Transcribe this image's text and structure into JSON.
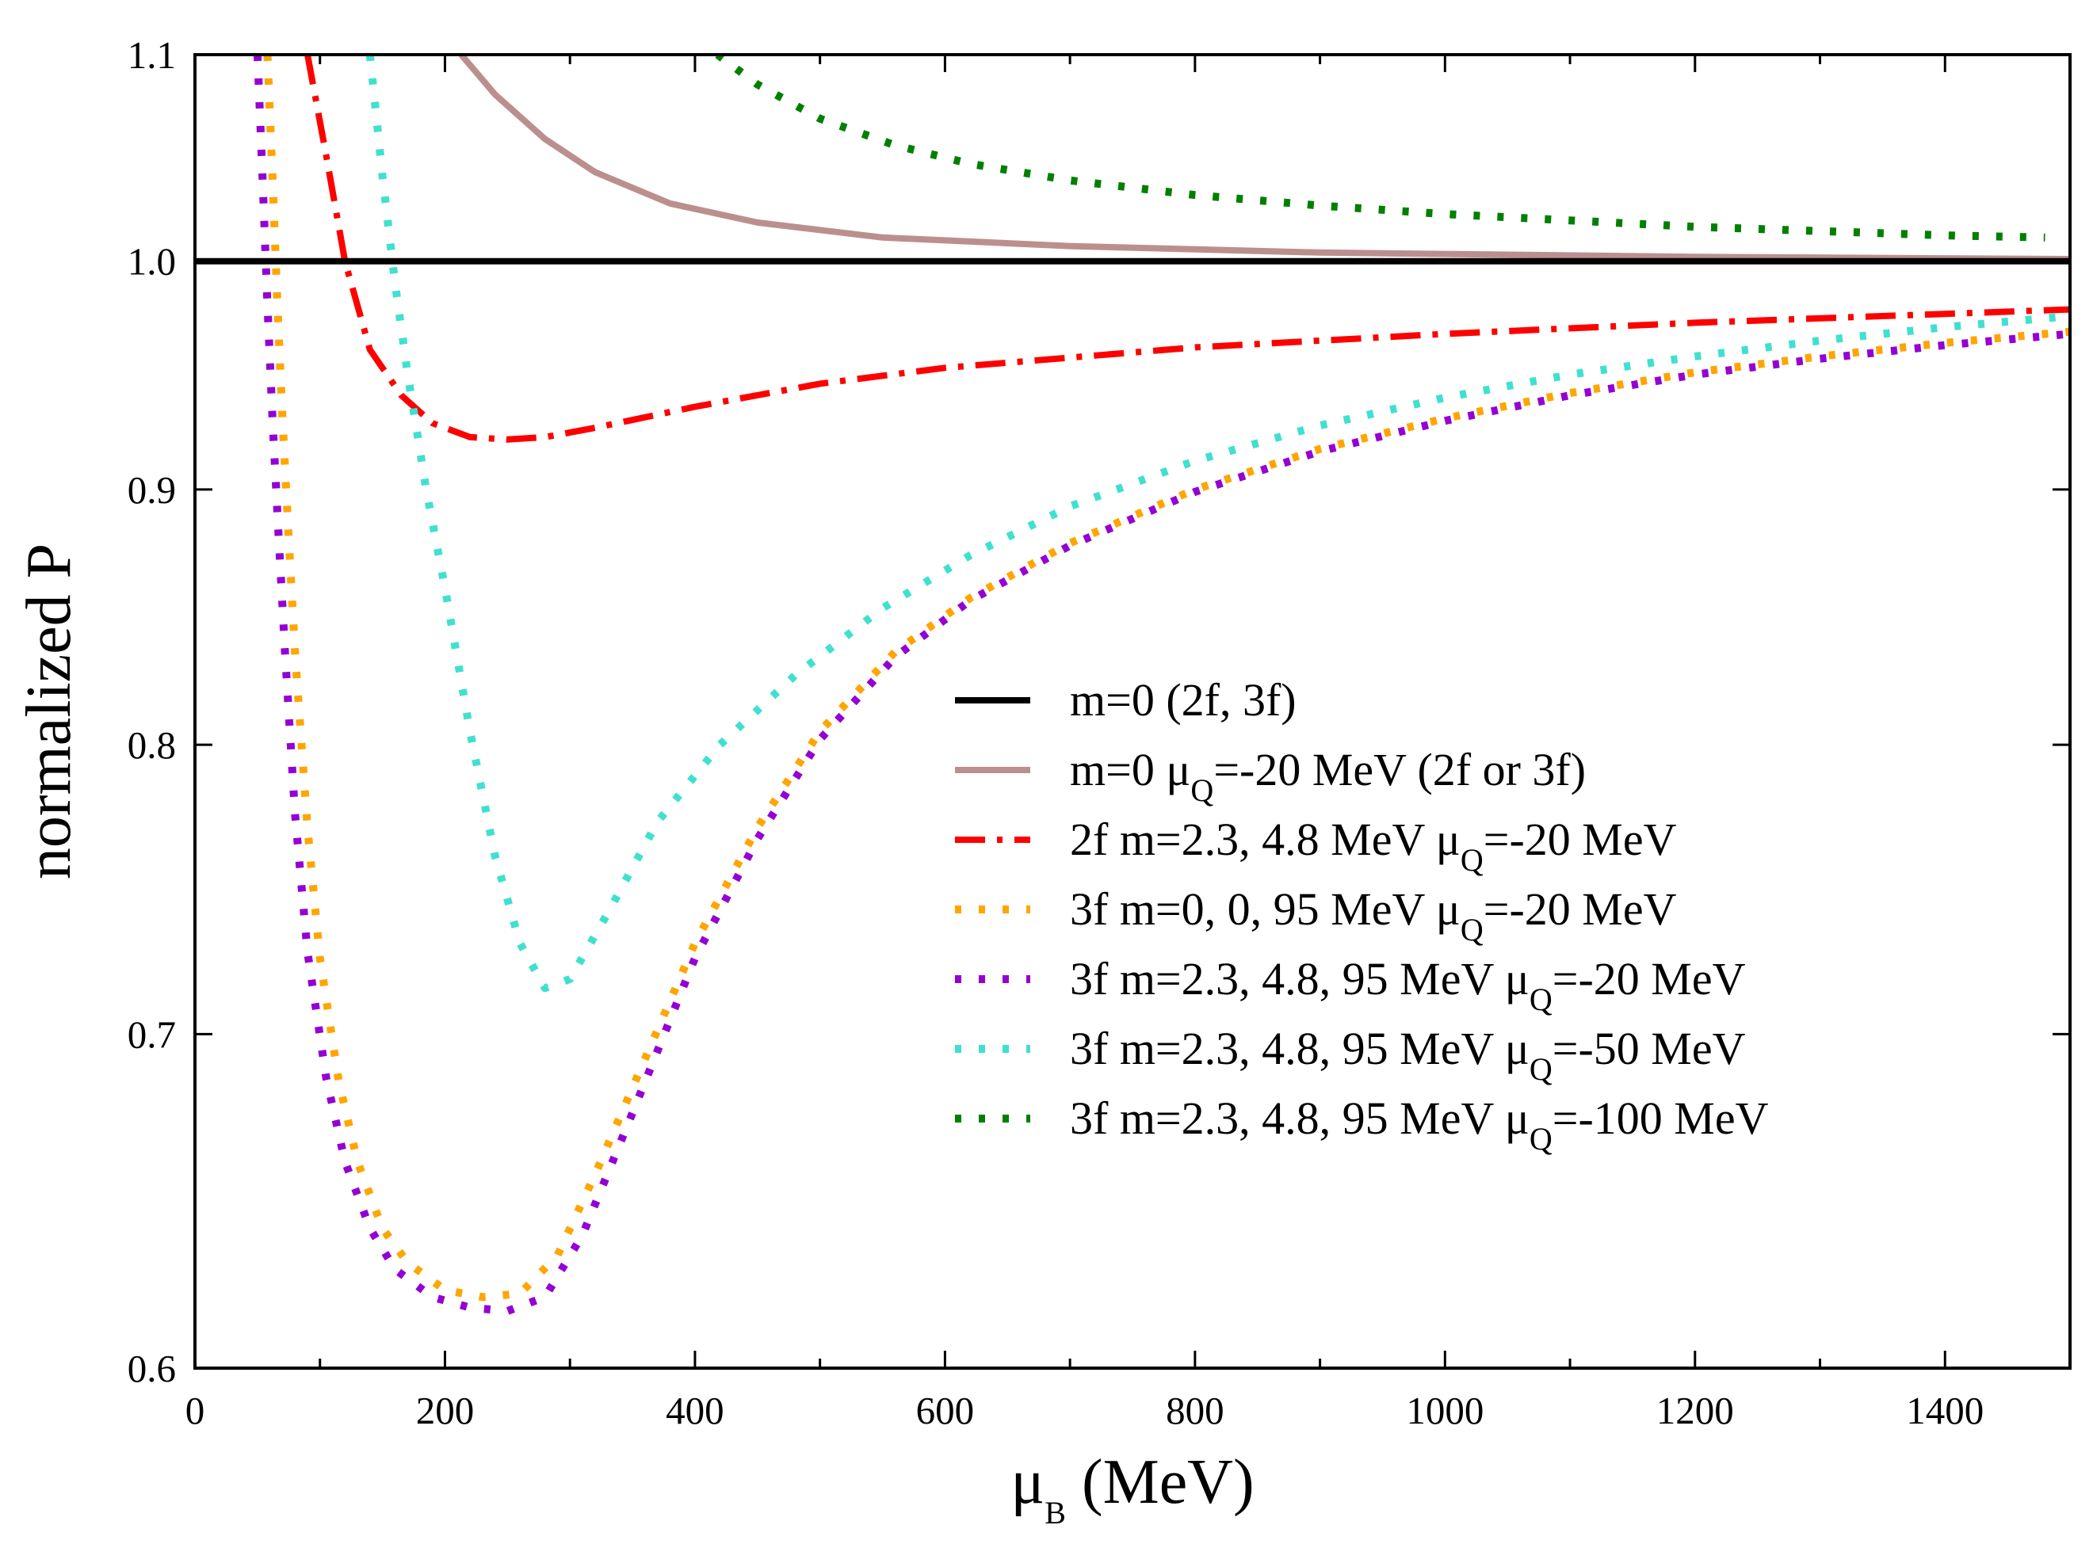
{
  "chart_data": {
    "type": "line",
    "title": "",
    "xlabel": {
      "symbol": "μ",
      "sub": "B",
      "rest": " (MeV)"
    },
    "ylabel": "normalized P",
    "xlim": [
      0,
      1500
    ],
    "ylim": [
      0.6,
      1.1
    ],
    "y_scale": "logarithmic",
    "grid": false,
    "legend_position": "center-right",
    "x_ticks": [
      0,
      200,
      400,
      600,
      800,
      1000,
      1200,
      1400
    ],
    "x_tick_labels": [
      "0",
      "200",
      "400",
      "600",
      "800",
      "1000",
      "1200",
      "1400"
    ],
    "y_ticks": [
      0.6,
      0.7,
      0.8,
      0.9,
      1.0,
      1.1
    ],
    "y_tick_labels": [
      "0.6",
      "0.7",
      "0.8",
      "0.9",
      "1.0",
      "1.1"
    ],
    "series": [
      {
        "name": "m=0 (2f, 3f)",
        "legend": [
          {
            "t": "m=0 (2f, 3f)"
          }
        ],
        "color": "#000000",
        "style": "solid",
        "x": [
          0,
          1500
        ],
        "y": [
          1.0,
          1.0
        ]
      },
      {
        "name": "m=0 μQ=-20 MeV (2f or 3f)",
        "legend": [
          {
            "t": "m=0 μ"
          },
          {
            "sub": "Q"
          },
          {
            "t": "=-20 MeV (2f or 3f)"
          }
        ],
        "color": "#BC8F8F",
        "style": "solid",
        "x": [
          213,
          240,
          280,
          320,
          380,
          450,
          550,
          700,
          900,
          1200,
          1500
        ],
        "y": [
          1.1,
          1.08,
          1.058,
          1.042,
          1.027,
          1.018,
          1.011,
          1.007,
          1.004,
          1.002,
          1.001
        ]
      },
      {
        "name": "2f m=2.3, 4.8 MeV μQ=-20 MeV",
        "legend": [
          {
            "t": "2f m=2.3, 4.8 MeV μ"
          },
          {
            "sub": "Q"
          },
          {
            "t": "=-20 MeV"
          }
        ],
        "color": "#FF0000",
        "style": "dashdot",
        "x": [
          90,
          105,
          120,
          140,
          165,
          190,
          220,
          250,
          280,
          320,
          400,
          500,
          600,
          800,
          1000,
          1200,
          1400,
          1500
        ],
        "y": [
          1.1,
          1.05,
          1.0,
          0.96,
          0.94,
          0.928,
          0.922,
          0.921,
          0.922,
          0.926,
          0.935,
          0.945,
          0.952,
          0.961,
          0.967,
          0.972,
          0.976,
          0.978
        ]
      },
      {
        "name": "3f m=0, 0, 95 MeV μQ=-20 MeV",
        "legend": [
          {
            "t": "3f m=0, 0, 95 MeV μ"
          },
          {
            "sub": "Q"
          },
          {
            "t": "=-20 MeV"
          }
        ],
        "color": "#FFA500",
        "style": "dotted",
        "x": [
          58,
          62,
          66,
          70,
          75,
          80,
          90,
          100,
          115,
          130,
          150,
          170,
          200,
          230,
          260,
          290,
          320,
          360,
          400,
          450,
          500,
          560,
          620,
          700,
          800,
          900,
          1000,
          1100,
          1200,
          1300,
          1400,
          1500
        ],
        "y": [
          1.1,
          1.04,
          0.98,
          0.93,
          0.88,
          0.835,
          0.77,
          0.725,
          0.685,
          0.66,
          0.64,
          0.63,
          0.622,
          0.62,
          0.621,
          0.632,
          0.656,
          0.692,
          0.73,
          0.77,
          0.805,
          0.835,
          0.856,
          0.878,
          0.9,
          0.917,
          0.93,
          0.941,
          0.95,
          0.957,
          0.963,
          0.968
        ]
      },
      {
        "name": "3f m=2.3, 4.8, 95 MeV μQ=-20 MeV",
        "legend": [
          {
            "t": "3f m=2.3, 4.8, 95 MeV μ"
          },
          {
            "sub": "Q"
          },
          {
            "t": "=-20 MeV"
          }
        ],
        "color": "#9400D3",
        "style": "dotted",
        "x": [
          50,
          54,
          58,
          62,
          67,
          72,
          80,
          90,
          105,
          120,
          140,
          160,
          190,
          220,
          250,
          280,
          310,
          350,
          400,
          450,
          500,
          560,
          620,
          700,
          800,
          900,
          1000,
          1100,
          1200,
          1300,
          1400,
          1500
        ],
        "y": [
          1.1,
          1.04,
          0.98,
          0.93,
          0.88,
          0.835,
          0.775,
          0.727,
          0.686,
          0.66,
          0.64,
          0.628,
          0.62,
          0.617,
          0.616,
          0.62,
          0.638,
          0.675,
          0.725,
          0.766,
          0.802,
          0.833,
          0.855,
          0.877,
          0.899,
          0.916,
          0.929,
          0.94,
          0.949,
          0.956,
          0.962,
          0.967
        ]
      },
      {
        "name": "3f m=2.3, 4.8, 95 MeV μQ=-50 MeV",
        "legend": [
          {
            "t": "3f m=2.3, 4.8, 95 MeV μ"
          },
          {
            "sub": "Q"
          },
          {
            "t": "=-50 MeV"
          }
        ],
        "color": "#40E0D0",
        "style": "dotted",
        "x": [
          140,
          150,
          160,
          170,
          185,
          200,
          220,
          240,
          260,
          280,
          300,
          330,
          370,
          420,
          480,
          550,
          620,
          700,
          800,
          900,
          1000,
          1100,
          1200,
          1300,
          1400,
          1500
        ],
        "y": [
          1.1,
          1.04,
          0.99,
          0.95,
          0.9,
          0.86,
          0.805,
          0.76,
          0.73,
          0.715,
          0.718,
          0.74,
          0.772,
          0.8,
          0.826,
          0.852,
          0.873,
          0.893,
          0.912,
          0.927,
          0.939,
          0.949,
          0.957,
          0.964,
          0.97,
          0.975
        ]
      },
      {
        "name": "3f m=2.3, 4.8, 95 MeV μQ=-100 MeV",
        "legend": [
          {
            "t": "3f m=2.3, 4.8, 95 MeV μ"
          },
          {
            "sub": "Q"
          },
          {
            "t": "=-100 MeV"
          }
        ],
        "color": "#008000",
        "style": "dotted",
        "x": [
          418,
          450,
          500,
          560,
          620,
          700,
          800,
          900,
          1000,
          1100,
          1200,
          1300,
          1400,
          1480
        ],
        "y": [
          1.1,
          1.085,
          1.068,
          1.055,
          1.046,
          1.038,
          1.031,
          1.026,
          1.022,
          1.019,
          1.016,
          1.014,
          1.012,
          1.011
        ]
      }
    ]
  }
}
